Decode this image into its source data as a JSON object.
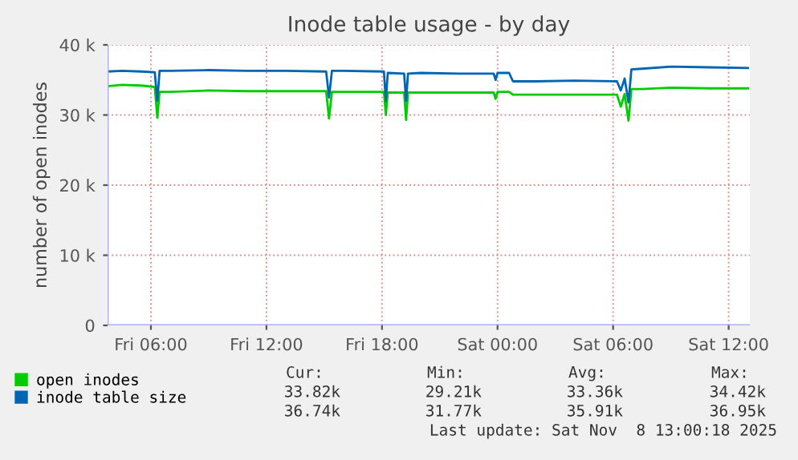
{
  "chart_data": {
    "type": "line",
    "title": "Inode table usage - by day",
    "ylabel": "number of open inodes",
    "xlim": [
      "2025-11-07T03:45",
      "2025-11-08T13:06"
    ],
    "xticks": [
      {
        "value": "2025-11-07T06:00",
        "label": "Fri 06:00"
      },
      {
        "value": "2025-11-07T12:00",
        "label": "Fri 12:00"
      },
      {
        "value": "2025-11-07T18:00",
        "label": "Fri 18:00"
      },
      {
        "value": "2025-11-08T00:00",
        "label": "Sat 00:00"
      },
      {
        "value": "2025-11-08T06:00",
        "label": "Sat 06:00"
      },
      {
        "value": "2025-11-08T12:00",
        "label": "Sat 12:00"
      }
    ],
    "ylim": [
      0,
      40000
    ],
    "yticks": [
      0,
      {
        "value": 10000,
        "label": "10 k"
      },
      {
        "value": 20000,
        "label": "20 k"
      },
      {
        "value": 30000,
        "label": "30 k"
      },
      {
        "value": 40000,
        "label": "40 k"
      }
    ],
    "grid": true,
    "legend": "bottom left",
    "series": [
      {
        "name": "open inodes",
        "color": "#00cc00",
        "x": [
          "2025-11-07T03:45",
          "2025-11-07T04:30",
          "2025-11-07T05:30",
          "2025-11-07T06:12",
          "2025-11-07T06:20",
          "2025-11-07T06:27",
          "2025-11-07T07:00",
          "2025-11-07T09:00",
          "2025-11-07T11:00",
          "2025-11-07T13:00",
          "2025-11-07T15:06",
          "2025-11-07T15:15",
          "2025-11-07T15:24",
          "2025-11-07T16:00",
          "2025-11-07T18:06",
          "2025-11-07T18:12",
          "2025-11-07T18:18",
          "2025-11-07T19:09",
          "2025-11-07T19:15",
          "2025-11-07T19:21",
          "2025-11-07T20:00",
          "2025-11-07T22:00",
          "2025-11-07T23:48",
          "2025-11-07T23:54",
          "2025-11-08T00:00",
          "2025-11-08T00:36",
          "2025-11-08T00:48",
          "2025-11-08T02:00",
          "2025-11-08T04:00",
          "2025-11-08T06:12",
          "2025-11-08T06:24",
          "2025-11-08T06:36",
          "2025-11-08T06:48",
          "2025-11-08T06:57",
          "2025-11-08T07:30",
          "2025-11-08T09:00",
          "2025-11-08T11:00",
          "2025-11-08T13:00"
        ],
        "values": [
          34100,
          34300,
          34200,
          34000,
          29600,
          33300,
          33300,
          33500,
          33400,
          33400,
          33400,
          29500,
          33300,
          33300,
          33300,
          30000,
          33200,
          33200,
          29300,
          33200,
          33200,
          33200,
          33200,
          32300,
          33300,
          33300,
          32900,
          32900,
          32900,
          32900,
          31200,
          33000,
          29200,
          33700,
          33700,
          33900,
          33800,
          33800
        ]
      },
      {
        "name": "inode table size",
        "color": "#0066b3",
        "x": [
          "2025-11-07T03:45",
          "2025-11-07T04:30",
          "2025-11-07T05:30",
          "2025-11-07T06:12",
          "2025-11-07T06:20",
          "2025-11-07T06:27",
          "2025-11-07T07:00",
          "2025-11-07T09:00",
          "2025-11-07T11:00",
          "2025-11-07T13:00",
          "2025-11-07T15:06",
          "2025-11-07T15:15",
          "2025-11-07T15:24",
          "2025-11-07T16:00",
          "2025-11-07T18:06",
          "2025-11-07T18:12",
          "2025-11-07T18:18",
          "2025-11-07T19:09",
          "2025-11-07T19:15",
          "2025-11-07T19:21",
          "2025-11-07T20:00",
          "2025-11-07T22:00",
          "2025-11-07T23:48",
          "2025-11-07T23:54",
          "2025-11-08T00:00",
          "2025-11-08T00:36",
          "2025-11-08T00:48",
          "2025-11-08T02:00",
          "2025-11-08T04:00",
          "2025-11-08T06:12",
          "2025-11-08T06:24",
          "2025-11-08T06:36",
          "2025-11-08T06:48",
          "2025-11-08T06:57",
          "2025-11-08T07:30",
          "2025-11-08T09:00",
          "2025-11-08T11:00",
          "2025-11-08T13:00"
        ],
        "values": [
          36200,
          36300,
          36200,
          36100,
          32000,
          36300,
          36300,
          36400,
          36300,
          36300,
          36200,
          32500,
          36300,
          36300,
          36200,
          32000,
          36000,
          35900,
          32000,
          35900,
          36000,
          35900,
          35900,
          35000,
          36000,
          36000,
          34800,
          34800,
          34900,
          34800,
          33500,
          35200,
          31800,
          36500,
          36600,
          36900,
          36800,
          36700
        ]
      }
    ],
    "annotations": [
      "Cur:",
      "Min:",
      "Avg:",
      "Max:",
      "33.82k",
      "29.21k",
      "33.36k",
      "34.42k",
      "36.74k",
      "31.77k",
      "35.91k",
      "36.95k",
      "Last update: Sat Nov  8 13:00:18 2025"
    ]
  }
}
